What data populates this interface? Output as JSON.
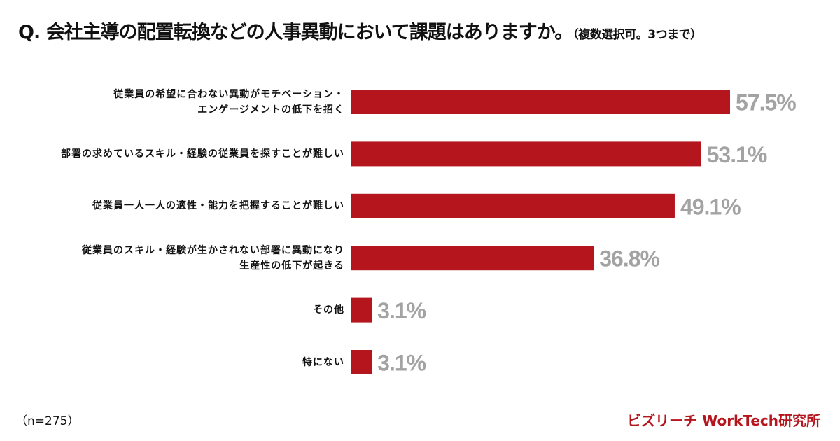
{
  "chart_data": {
    "type": "bar",
    "orientation": "horizontal",
    "title": "Q. 会社主導の配置転換などの人事異動において課題はありますか。",
    "subtitle": "（複数選択可。3つまで）",
    "categories": [
      [
        "従業員の希望に合わない異動がモチベーション・",
        "エンゲージメントの低下を招く"
      ],
      [
        "部署の求めているスキル・経験の従業員を探すことが難しい"
      ],
      [
        "従業員一人一人の適性・能力を把握することが難しい"
      ],
      [
        "従業員のスキル・経験が生かされない部署に異動になり",
        "生産性の低下が起きる"
      ],
      [
        "その他"
      ],
      [
        "特にない"
      ]
    ],
    "values": [
      57.5,
      53.1,
      49.1,
      36.8,
      3.1,
      3.1
    ],
    "data_labels": [
      "57.5%",
      "53.1%",
      "49.1%",
      "36.8%",
      "3.1%",
      "3.1%"
    ],
    "xlim": [
      0,
      100
    ],
    "grid": false,
    "bar_color": "#b5161e",
    "label_color": "#a3a3a3"
  },
  "footer": {
    "sample": "（n=275）",
    "brand": "ビズリーチ WorkTech研究所"
  }
}
